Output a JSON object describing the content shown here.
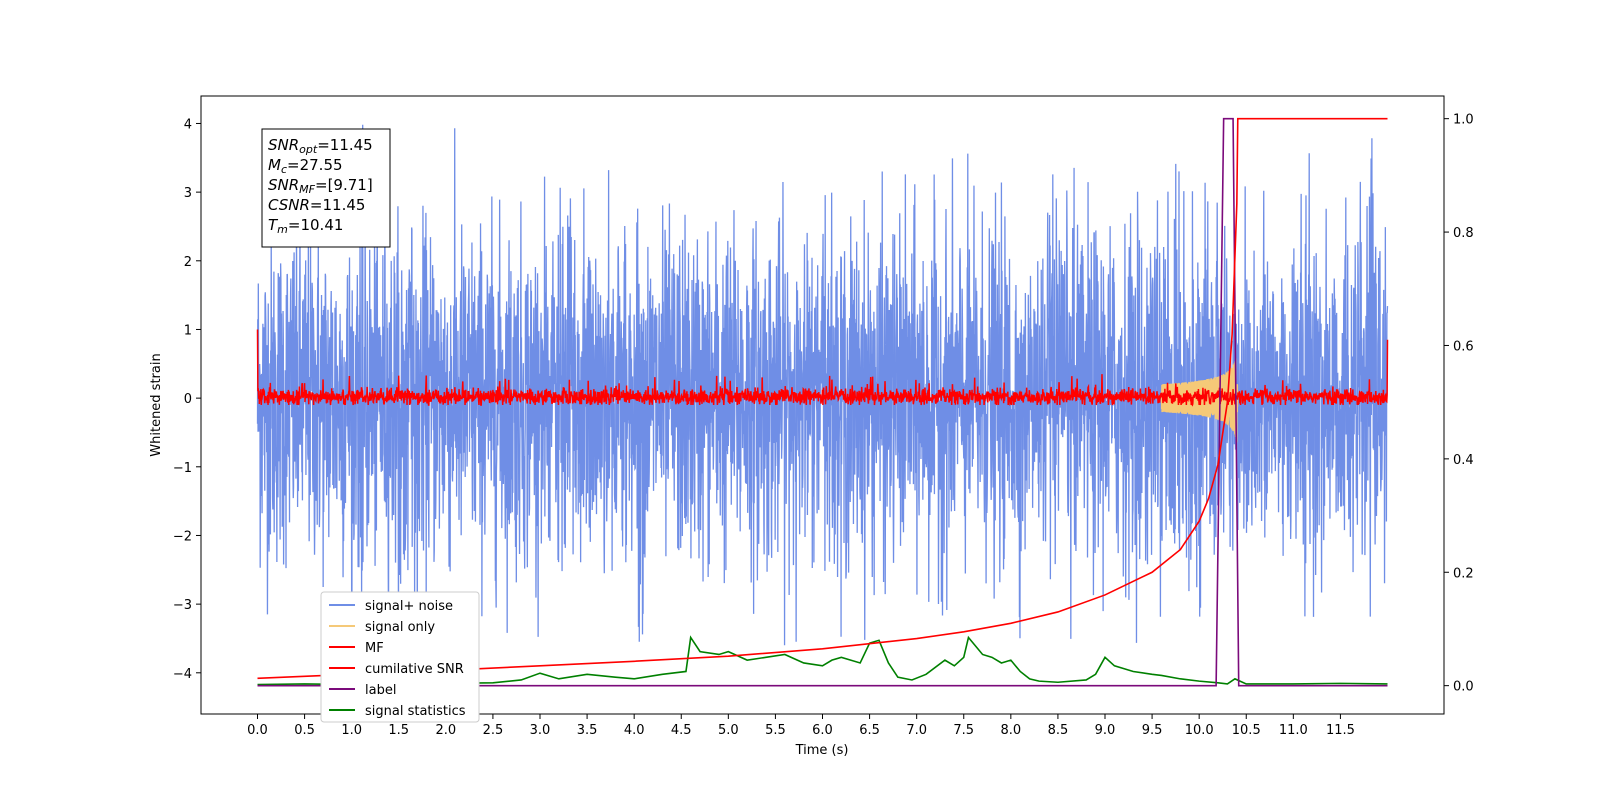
{
  "chart_data": {
    "type": "line",
    "title": "",
    "xlabel": "Time (s)",
    "ylabel": "Whitened strain",
    "xlim": [
      -0.6,
      12.6
    ],
    "ylim": [
      -4.6,
      4.4
    ],
    "y2lim": [
      -0.05,
      1.04
    ],
    "x_ticks": [
      0.0,
      0.5,
      1.0,
      1.5,
      2.0,
      2.5,
      3.0,
      3.5,
      4.0,
      4.5,
      5.0,
      5.5,
      6.0,
      6.5,
      7.0,
      7.5,
      8.0,
      8.5,
      9.0,
      9.5,
      10.0,
      10.5,
      11.0,
      11.5
    ],
    "x_tick_labels": [
      "0.0",
      "0.5",
      "1.0",
      "1.5",
      "2.0",
      "2.5",
      "3.0",
      "3.5",
      "4.0",
      "4.5",
      "5.0",
      "5.5",
      "6.0",
      "6.5",
      "7.0",
      "7.5",
      "8.0",
      "8.5",
      "9.0",
      "9.5",
      "10.0",
      "10.5",
      "11.0",
      "11.5"
    ],
    "y_ticks": [
      -4,
      -3,
      -2,
      -1,
      0,
      1,
      2,
      3,
      4
    ],
    "y_tick_labels": [
      "−4",
      "−3",
      "−2",
      "−1",
      "0",
      "1",
      "2",
      "3",
      "4"
    ],
    "y2_ticks": [
      0.0,
      0.2,
      0.4,
      0.6,
      0.8,
      1.0
    ],
    "y2_tick_labels": [
      "0.0",
      "0.2",
      "0.4",
      "0.6",
      "0.8",
      "1.0"
    ],
    "grid": false,
    "legend_position": "lower-left",
    "annotation": {
      "lines": [
        {
          "base": "SNR",
          "sub": "opt",
          "rest": "=11.45"
        },
        {
          "base": "M",
          "sub": "c",
          "rest": "=27.55"
        },
        {
          "base": "SNR",
          "sub": "MF",
          "rest": "=[9.71]"
        },
        {
          "base": "CSNR",
          "sub": "",
          "rest": "=11.45"
        },
        {
          "base": "T",
          "sub": "m",
          "rest": "=10.41"
        }
      ]
    },
    "series": [
      {
        "name": "signal+ noise",
        "color": "#6f8ee6",
        "axis": "left",
        "kind": "noise",
        "t_start": 0.0,
        "t_end": 12.0,
        "amplitude": 1.2,
        "peak_max": 4.0,
        "peak_min": -3.6
      },
      {
        "name": "signal only",
        "color": "#f5c978",
        "axis": "left",
        "kind": "chirp",
        "t_start": 9.6,
        "t_end": 10.41,
        "peak_amplitude": 0.75
      },
      {
        "name": "MF",
        "color": "#ff0000",
        "axis": "left",
        "kind": "mf",
        "t_start": 0.0,
        "t_end": 12.0,
        "start_value": 1.0,
        "end_value": 0.85,
        "band": [
          -0.1,
          0.25
        ]
      },
      {
        "name": "cumilative SNR",
        "color": "#ff0000",
        "axis": "right",
        "x": [
          0.0,
          1.0,
          2.0,
          3.0,
          4.0,
          5.0,
          6.0,
          7.0,
          7.5,
          8.0,
          8.5,
          9.0,
          9.5,
          9.8,
          10.0,
          10.1,
          10.2,
          10.3,
          10.35,
          10.4,
          10.41,
          12.0
        ],
        "values": [
          0.013,
          0.02,
          0.027,
          0.035,
          0.043,
          0.052,
          0.065,
          0.083,
          0.095,
          0.11,
          0.13,
          0.16,
          0.2,
          0.24,
          0.29,
          0.33,
          0.39,
          0.5,
          0.62,
          0.85,
          1.0,
          1.0
        ]
      },
      {
        "name": "label",
        "color": "#7b0a7b",
        "axis": "right",
        "x": [
          0.0,
          10.18,
          10.26,
          10.36,
          10.42,
          12.0
        ],
        "values": [
          0.0,
          0.0,
          1.0,
          1.0,
          0.0,
          0.0
        ]
      },
      {
        "name": "signal statistics",
        "color": "#008000",
        "axis": "right",
        "x": [
          0.0,
          0.5,
          1.0,
          1.5,
          2.0,
          2.5,
          2.8,
          3.0,
          3.2,
          3.5,
          3.8,
          4.0,
          4.3,
          4.55,
          4.6,
          4.7,
          4.9,
          5.0,
          5.2,
          5.4,
          5.6,
          5.8,
          6.0,
          6.1,
          6.2,
          6.4,
          6.5,
          6.6,
          6.7,
          6.8,
          6.95,
          7.1,
          7.3,
          7.4,
          7.5,
          7.55,
          7.7,
          7.8,
          7.9,
          8.0,
          8.1,
          8.2,
          8.3,
          8.5,
          8.8,
          8.9,
          9.0,
          9.1,
          9.2,
          9.3,
          9.5,
          9.6,
          9.8,
          10.0,
          10.2,
          10.3,
          10.38,
          10.5,
          11.0,
          11.5,
          12.0
        ],
        "values": [
          0.002,
          0.003,
          0.002,
          0.003,
          0.004,
          0.005,
          0.01,
          0.022,
          0.012,
          0.02,
          0.015,
          0.012,
          0.02,
          0.025,
          0.085,
          0.06,
          0.055,
          0.06,
          0.045,
          0.05,
          0.055,
          0.04,
          0.035,
          0.045,
          0.05,
          0.04,
          0.075,
          0.08,
          0.04,
          0.015,
          0.01,
          0.02,
          0.045,
          0.035,
          0.05,
          0.085,
          0.055,
          0.05,
          0.04,
          0.045,
          0.025,
          0.012,
          0.008,
          0.006,
          0.01,
          0.02,
          0.05,
          0.035,
          0.03,
          0.025,
          0.02,
          0.018,
          0.012,
          0.008,
          0.005,
          0.003,
          0.012,
          0.003,
          0.003,
          0.004,
          0.003
        ]
      }
    ]
  }
}
